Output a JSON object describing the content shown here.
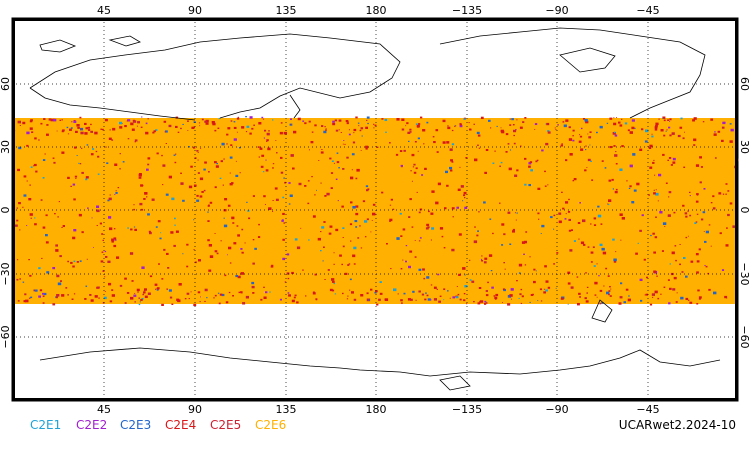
{
  "top_lon_labels": [
    "45",
    "90",
    "135",
    "180",
    "−135",
    "−90",
    "−45"
  ],
  "bottom_lon_labels": [
    "45",
    "90",
    "135",
    "180",
    "−135",
    "−90",
    "−45"
  ],
  "left_lat_labels": [
    "60",
    "30",
    "0",
    "−30",
    "−60"
  ],
  "right_lat_labels": [
    "60",
    "30",
    "0",
    "−30",
    "−60"
  ],
  "legend": [
    {
      "label": "C2E1",
      "color": "#1fa2d8"
    },
    {
      "label": "C2E2",
      "color": "#a020d0"
    },
    {
      "label": "C2E3",
      "color": "#2266cc"
    },
    {
      "label": "C2E4",
      "color": "#d81818"
    },
    {
      "label": "C2E5",
      "color": "#cc2233"
    },
    {
      "label": "C2E6",
      "color": "#ffb000"
    }
  ],
  "title": "UCARwet2.2024-10",
  "coverage_lat_range": [
    -45,
    45
  ],
  "fill_color": "#ffb000"
}
